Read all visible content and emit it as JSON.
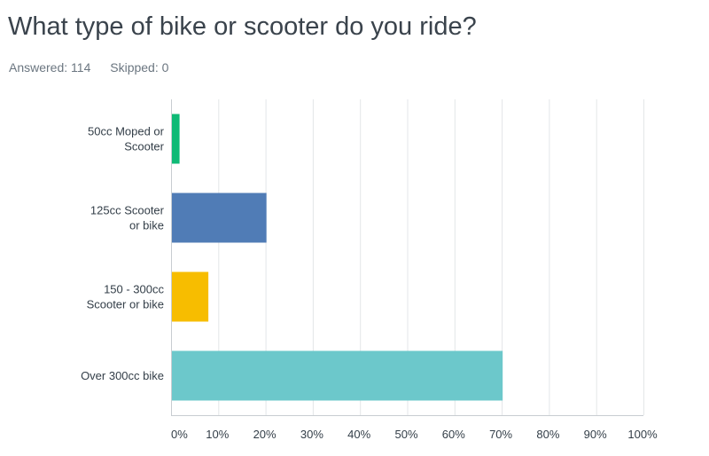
{
  "question": {
    "title": "What type of bike or scooter do you ride?",
    "answered": "Answered: 114",
    "skipped": "Skipped: 0"
  },
  "chart_data": {
    "type": "bar",
    "orientation": "horizontal",
    "categories": [
      [
        "50cc Moped or",
        "Scooter"
      ],
      [
        "125cc Scooter",
        "or bike"
      ],
      [
        "150 - 300cc",
        "Scooter or bike"
      ],
      [
        "Over 300cc bike"
      ]
    ],
    "values": [
      1.8,
      20.2,
      7.9,
      70.2
    ],
    "colors": [
      "#0fba76",
      "#507cb6",
      "#f7bd00",
      "#6cc8cb"
    ],
    "xlim": [
      0,
      100
    ],
    "xticks": [
      0,
      10,
      20,
      30,
      40,
      50,
      60,
      70,
      80,
      90,
      100
    ],
    "xtick_labels": [
      "0%",
      "10%",
      "20%",
      "30%",
      "40%",
      "50%",
      "60%",
      "70%",
      "80%",
      "90%",
      "100%"
    ],
    "grid": true,
    "gridline_color": "#e3e6e8",
    "axis_color": "#c8cdd1"
  }
}
